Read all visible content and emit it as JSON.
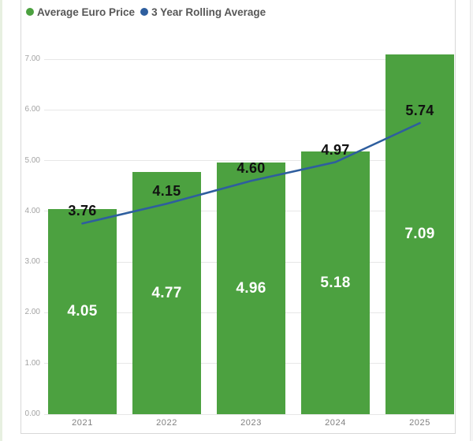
{
  "page": {
    "background_color": "#ffffff",
    "left_strip_color": "#e7f0e1",
    "card_border_color": "#d8d8d8"
  },
  "legend": {
    "items": [
      {
        "label": "Average Euro Price",
        "color": "#4ca140",
        "marker": "circle"
      },
      {
        "label": "3 Year Rolling Average",
        "color": "#2e5e9e",
        "marker": "circle"
      }
    ],
    "text_color": "#575757"
  },
  "chart_data": {
    "type": "bar",
    "subtype": "combo-bar-line",
    "title": "",
    "xlabel": "",
    "ylabel": "",
    "categories": [
      "2021",
      "2022",
      "2023",
      "2024",
      "2025"
    ],
    "series": [
      {
        "name": "Average Euro Price",
        "type": "bar",
        "color": "#4ca140",
        "values": [
          4.05,
          4.77,
          4.96,
          5.18,
          7.09
        ],
        "labels": [
          "4.05",
          "4.77",
          "4.96",
          "5.18",
          "7.09"
        ],
        "label_color": "#ffffff"
      },
      {
        "name": "3 Year Rolling Average",
        "type": "line",
        "color": "#2e5e9e",
        "values": [
          3.76,
          4.15,
          4.6,
          4.97,
          5.74
        ],
        "labels": [
          "3.76",
          "4.15",
          "4.60",
          "4.97",
          "5.74"
        ],
        "label_color": "#111111"
      }
    ],
    "y_axis": {
      "min": 0,
      "max": 7,
      "step": 1,
      "tick_labels": [
        "0.00",
        "1.00",
        "2.00",
        "3.00",
        "4.00",
        "5.00",
        "6.00",
        "7.00"
      ],
      "tick_color": "#a3a3a3"
    },
    "x_axis": {
      "labels": [
        "2021",
        "2022",
        "2023",
        "2024",
        "2025"
      ],
      "tick_color": "#808080"
    },
    "grid": {
      "show": true,
      "color": "#e7e7e7",
      "legend_position": "top-left"
    }
  }
}
